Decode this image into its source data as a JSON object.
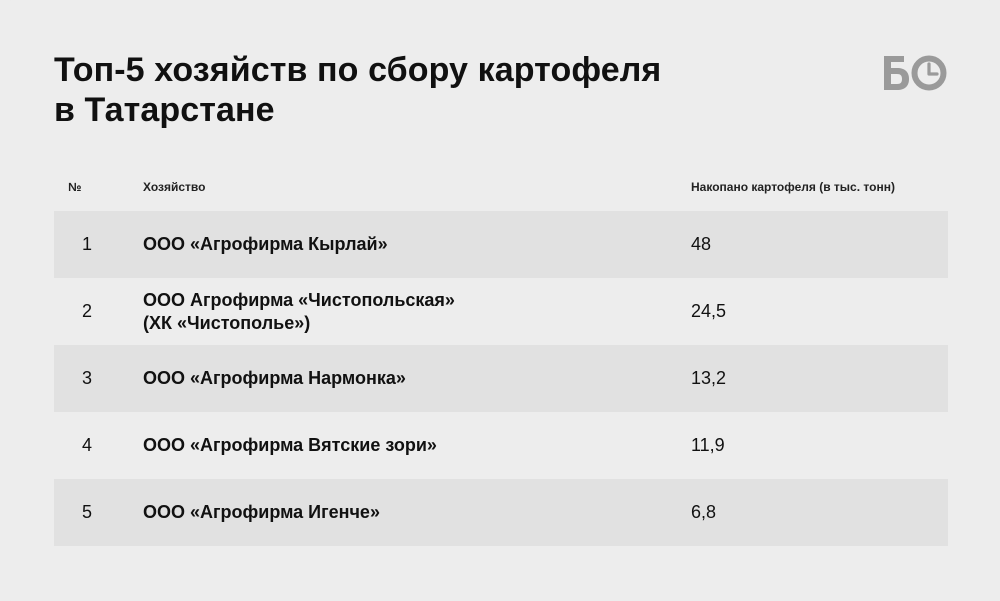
{
  "title": {
    "line1": "Топ-5 хозяйств по сбору картофеля",
    "line2": "в Татарстане"
  },
  "logo": {
    "icon": "bo-clock-logo-icon",
    "text": "БО",
    "color": "#9a9a9a"
  },
  "table": {
    "headers": {
      "num": "№",
      "farm": "Хозяйство",
      "amount": "Накопано картофеля (в тыс. тонн)"
    },
    "rows": [
      {
        "num": "1",
        "farm_line1": "ООО «Агрофирма Кырлай»",
        "farm_line2": "",
        "amount": "48"
      },
      {
        "num": "2",
        "farm_line1": "ООО Агрофирма «Чистопольская»",
        "farm_line2": "(ХК «Чистополье»)",
        "amount": "24,5"
      },
      {
        "num": "3",
        "farm_line1": "ООО «Агрофирма Нармонка»",
        "farm_line2": "",
        "amount": "13,2"
      },
      {
        "num": "4",
        "farm_line1": "ООО «Агрофирма Вятские зори»",
        "farm_line2": "",
        "amount": "11,9"
      },
      {
        "num": "5",
        "farm_line1": "ООО «Агрофирма Игенче»",
        "farm_line2": "",
        "amount": "6,8"
      }
    ]
  },
  "colors": {
    "background": "#ededed",
    "row_shade": "#e1e1e1",
    "text": "#111111"
  }
}
